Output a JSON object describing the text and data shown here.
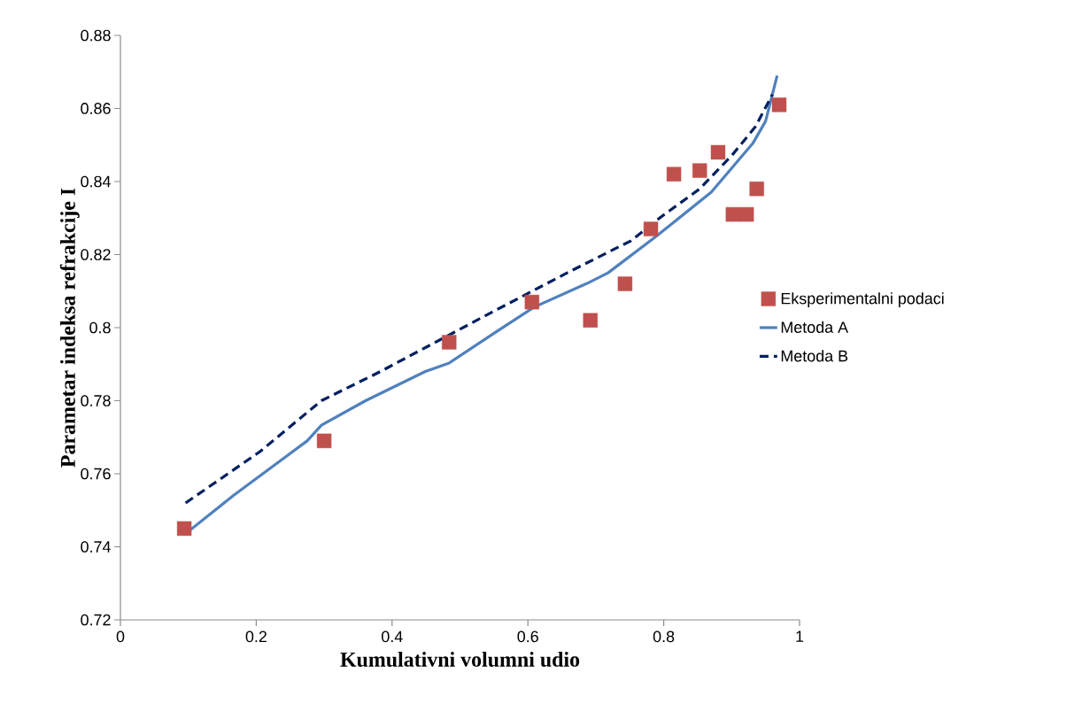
{
  "chart_data": {
    "type": "line",
    "xlabel": "Kumulativni volumni udio",
    "ylabel": "Parametar indeksa refrakcije I",
    "xlim": [
      0,
      1
    ],
    "ylim": [
      0.72,
      0.88
    ],
    "xticks": [
      0,
      0.2,
      0.4,
      0.6,
      0.8,
      1
    ],
    "yticks": [
      0.72,
      0.74,
      0.76,
      0.78,
      0.8,
      0.82,
      0.84,
      0.86,
      0.88
    ],
    "grid": false,
    "legend": "right",
    "series": [
      {
        "name": "Eksperimentalni podaci",
        "type": "scatter",
        "marker": "square",
        "color": "#c0504d",
        "x": [
          0.094,
          0.3,
          0.484,
          0.606,
          0.692,
          0.743,
          0.781,
          0.815,
          0.853,
          0.88,
          0.902,
          0.922,
          0.937,
          0.97
        ],
        "values": [
          0.745,
          0.769,
          0.796,
          0.807,
          0.802,
          0.812,
          0.827,
          0.842,
          0.843,
          0.848,
          0.831,
          0.831,
          0.838,
          0.861
        ]
      },
      {
        "name": "Metoda A",
        "line_style": "solid",
        "color": "#4f81bd",
        "x": [
          0.094,
          0.166,
          0.275,
          0.296,
          0.361,
          0.449,
          0.484,
          0.553,
          0.609,
          0.687,
          0.718,
          0.787,
          0.87,
          0.931,
          0.95,
          0.967
        ],
        "values": [
          0.7433,
          0.754,
          0.769,
          0.7733,
          0.78,
          0.788,
          0.7903,
          0.7988,
          0.8056,
          0.8121,
          0.815,
          0.8247,
          0.8371,
          0.8504,
          0.8565,
          0.869
        ]
      },
      {
        "name": "Metoda B",
        "line_style": "dashed",
        "color": "#002060",
        "x": [
          0.096,
          0.205,
          0.296,
          0.383,
          0.553,
          0.661,
          0.752,
          0.796,
          0.853,
          0.901,
          0.935,
          0.96
        ],
        "values": [
          0.752,
          0.766,
          0.78,
          0.788,
          0.8048,
          0.8153,
          0.8238,
          0.8303,
          0.838,
          0.8473,
          0.855,
          0.8638
        ]
      }
    ]
  }
}
